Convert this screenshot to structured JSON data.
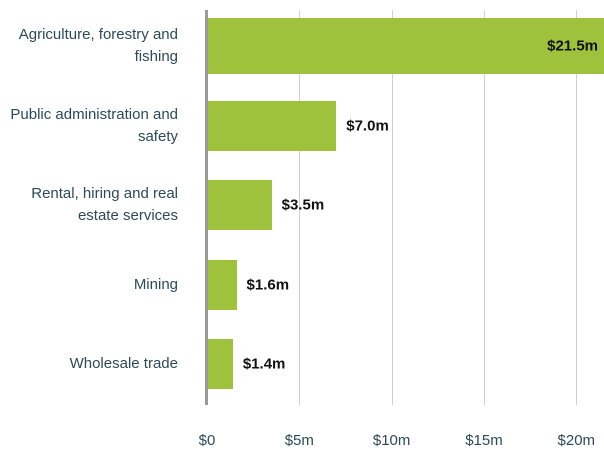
{
  "chart_data": {
    "type": "bar",
    "orientation": "horizontal",
    "categories": [
      "Agriculture, forestry and fishing",
      "Public administration and safety",
      "Rental, hiring and real estate services",
      "Mining",
      "Wholesale trade"
    ],
    "values": [
      21.5,
      7.0,
      3.5,
      1.6,
      1.4
    ],
    "value_labels": [
      "$21.5m",
      "$7.0m",
      "$3.5m",
      "$1.6m",
      "$1.4m"
    ],
    "color": "#9ec23b",
    "xlim": [
      0,
      21.5
    ],
    "xticks": [
      {
        "value": 0,
        "label": "$0"
      },
      {
        "value": 5,
        "label": "$5m"
      },
      {
        "value": 10,
        "label": "$10m"
      },
      {
        "value": 15,
        "label": "$15m"
      },
      {
        "value": 20,
        "label": "$20m"
      }
    ],
    "grid": true
  }
}
